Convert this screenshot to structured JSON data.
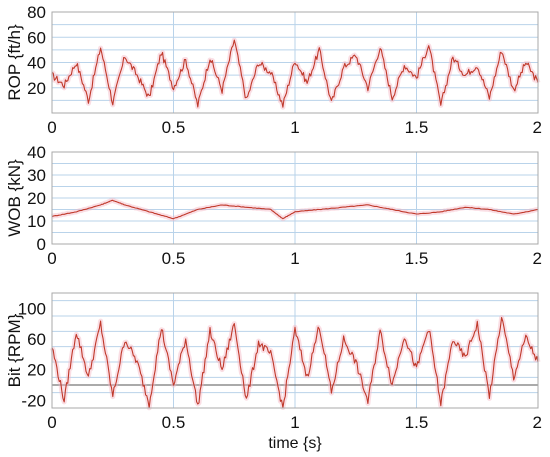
{
  "chart_data": [
    {
      "type": "line",
      "ylabel": "ROP {ft/h}",
      "xlabel": "",
      "xlim": [
        0,
        2
      ],
      "ylim": [
        0,
        80
      ],
      "xticks": [
        "0",
        "0.5",
        "1",
        "1.5",
        "2"
      ],
      "yticks": [
        "20",
        "40",
        "60",
        "80"
      ],
      "series": [
        {
          "x": [
            0,
            0.05,
            0.1,
            0.15,
            0.2,
            0.25,
            0.3,
            0.35,
            0.4,
            0.45,
            0.5,
            0.55,
            0.6,
            0.65,
            0.7,
            0.75,
            0.8,
            0.85,
            0.9,
            0.95,
            1.0,
            1.05,
            1.1,
            1.15,
            1.2,
            1.25,
            1.3,
            1.35,
            1.4,
            1.45,
            1.5,
            1.55,
            1.6,
            1.65,
            1.7,
            1.75,
            1.8,
            1.85,
            1.9,
            1.95,
            2.0
          ],
          "values": [
            30,
            22,
            40,
            10,
            52,
            8,
            45,
            30,
            12,
            48,
            20,
            42,
            6,
            44,
            18,
            58,
            10,
            40,
            32,
            6,
            42,
            24,
            50,
            8,
            36,
            46,
            20,
            52,
            12,
            38,
            28,
            54,
            6,
            44,
            30,
            38,
            12,
            50,
            18,
            40,
            24
          ]
        }
      ]
    },
    {
      "type": "line",
      "ylabel": "WOB {kN}",
      "xlabel": "",
      "xlim": [
        0,
        2
      ],
      "ylim": [
        0,
        40
      ],
      "xticks": [
        "0",
        "0.5",
        "1",
        "1.5",
        "2"
      ],
      "yticks": [
        "0",
        "10",
        "20",
        "30",
        "40"
      ],
      "series": [
        {
          "x": [
            0,
            0.1,
            0.2,
            0.25,
            0.3,
            0.4,
            0.5,
            0.6,
            0.7,
            0.8,
            0.9,
            0.95,
            1.0,
            1.1,
            1.2,
            1.3,
            1.4,
            1.5,
            1.6,
            1.7,
            1.8,
            1.9,
            2.0
          ],
          "values": [
            12,
            14,
            17,
            19,
            17,
            14,
            11,
            15,
            17,
            16,
            15,
            11,
            14,
            15,
            16,
            17,
            15,
            13,
            14,
            16,
            15,
            13,
            15
          ]
        }
      ]
    },
    {
      "type": "line",
      "ylabel": "Bit {RPM}",
      "xlabel": "time {s}",
      "xlim": [
        0,
        2
      ],
      "ylim": [
        -30,
        120
      ],
      "xticks": [
        "0",
        "0.5",
        "1",
        "1.5",
        "2"
      ],
      "yticks": [
        "-20",
        "20",
        "60",
        "100"
      ],
      "series": [
        {
          "x": [
            0,
            0.05,
            0.1,
            0.15,
            0.2,
            0.25,
            0.3,
            0.35,
            0.4,
            0.45,
            0.5,
            0.55,
            0.6,
            0.65,
            0.7,
            0.75,
            0.8,
            0.85,
            0.9,
            0.95,
            1.0,
            1.05,
            1.1,
            1.15,
            1.2,
            1.25,
            1.3,
            1.35,
            1.4,
            1.45,
            1.5,
            1.55,
            1.6,
            1.65,
            1.7,
            1.75,
            1.8,
            1.85,
            1.9,
            1.95,
            2.0
          ],
          "values": [
            50,
            -20,
            70,
            10,
            80,
            -15,
            60,
            30,
            -25,
            75,
            0,
            60,
            -28,
            70,
            20,
            80,
            -20,
            55,
            40,
            -30,
            72,
            10,
            78,
            -10,
            60,
            30,
            -22,
            70,
            0,
            65,
            20,
            75,
            -25,
            60,
            35,
            80,
            -15,
            88,
            10,
            62,
            30
          ]
        }
      ]
    }
  ]
}
